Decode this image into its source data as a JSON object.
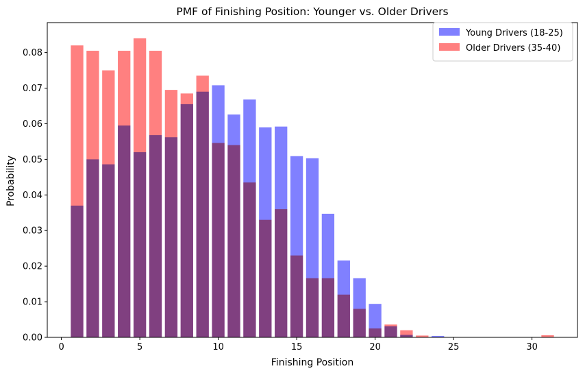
{
  "chart_data": {
    "type": "bar",
    "title": "PMF of Finishing Position: Younger vs. Older Drivers",
    "xlabel": "Finishing Position",
    "ylabel": "Probability",
    "xlim": [
      -0.9,
      32.9
    ],
    "ylim": [
      0,
      0.0884
    ],
    "xticks": [
      0,
      5,
      10,
      15,
      20,
      25,
      30
    ],
    "xtick_labels": [
      "0",
      "5",
      "10",
      "15",
      "20",
      "25",
      "30"
    ],
    "yticks": [
      0,
      0.01,
      0.02,
      0.03,
      0.04,
      0.05,
      0.06,
      0.07,
      0.08
    ],
    "ytick_labels": [
      "0.00",
      "0.01",
      "0.02",
      "0.03",
      "0.04",
      "0.05",
      "0.06",
      "0.07",
      "0.08"
    ],
    "grid": false,
    "legend_position": "top-right",
    "series": [
      {
        "name": "Young Drivers (18-25)",
        "color": "#8080ff",
        "x": [
          1,
          2,
          3,
          4,
          5,
          6,
          7,
          8,
          9,
          10,
          11,
          12,
          13,
          14,
          15,
          16,
          17,
          18,
          19,
          20,
          21,
          22,
          23,
          24
        ],
        "values": [
          0.037,
          0.05,
          0.0486,
          0.0595,
          0.052,
          0.0568,
          0.0562,
          0.0655,
          0.069,
          0.0708,
          0.0626,
          0.0668,
          0.059,
          0.0592,
          0.0509,
          0.0503,
          0.0347,
          0.0216,
          0.0166,
          0.0094,
          0.0031,
          0.0007,
          0.0001,
          0.0004
        ]
      },
      {
        "name": "Older Drivers (35-40)",
        "color": "#ff8080",
        "x": [
          1,
          2,
          3,
          4,
          5,
          6,
          7,
          8,
          9,
          10,
          11,
          12,
          13,
          14,
          15,
          16,
          17,
          18,
          19,
          20,
          21,
          22,
          23,
          31
        ],
        "values": [
          0.082,
          0.0805,
          0.075,
          0.0805,
          0.084,
          0.0805,
          0.0695,
          0.0685,
          0.0735,
          0.0546,
          0.054,
          0.0435,
          0.033,
          0.036,
          0.023,
          0.0166,
          0.0166,
          0.012,
          0.008,
          0.0025,
          0.0036,
          0.002,
          0.0005,
          0.0006
        ]
      }
    ]
  }
}
